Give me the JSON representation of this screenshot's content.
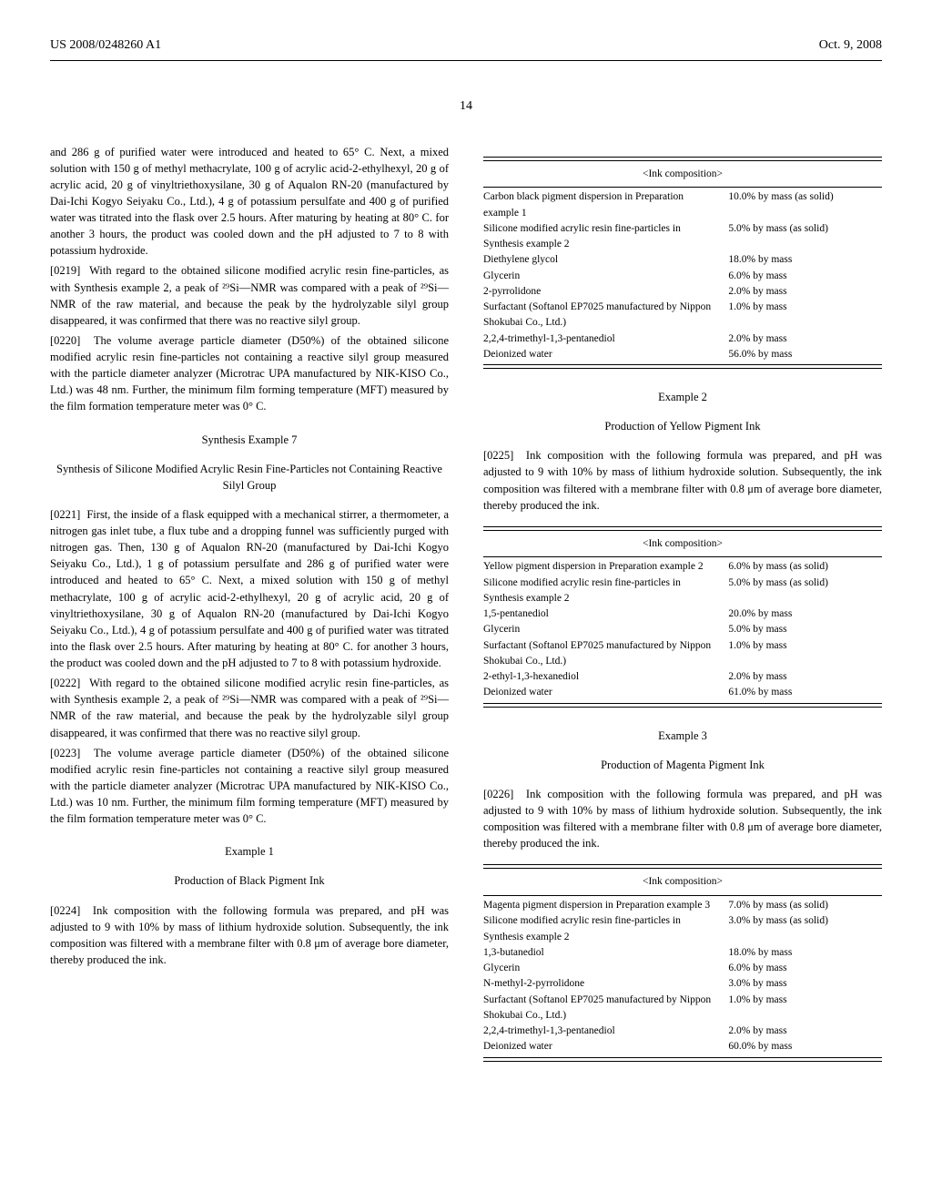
{
  "header": {
    "left": "US 2008/0248260 A1",
    "right": "Oct. 9, 2008",
    "pagenum": "14"
  },
  "col1": {
    "p1": "and 286 g of purified water were introduced and heated to 65° C. Next, a mixed solution with 150 g of methyl methacrylate, 100 g of acrylic acid-2-ethylhexyl, 20 g of acrylic acid, 20 g of vinyltriethoxysilane, 30 g of Aqualon RN-20 (manufactured by Dai-Ichi Kogyo Seiyaku Co., Ltd.), 4 g of potassium persulfate and 400 g of purified water was titrated into the flask over 2.5 hours. After maturing by heating at 80° C. for another 3 hours, the product was cooled down and the pH adjusted to 7 to 8 with potassium hydroxide.",
    "p2n": "[0219]",
    "p2": "With regard to the obtained silicone modified acrylic resin fine-particles, as with Synthesis example 2, a peak of ²⁹Si—NMR was compared with a peak of ²⁹Si—NMR of the raw material, and because the peak by the hydrolyzable silyl group disappeared, it was confirmed that there was no reactive silyl group.",
    "p3n": "[0220]",
    "p3": "The volume average particle diameter (D50%) of the obtained silicone modified acrylic resin fine-particles not containing a reactive silyl group measured with the particle diameter analyzer (Microtrac UPA manufactured by NIK-KISO Co., Ltd.) was 48 nm. Further, the minimum film forming temperature (MFT) measured by the film formation temperature meter was 0° C.",
    "synth_title": "Synthesis Example 7",
    "synth_sub": "Synthesis of Silicone Modified Acrylic Resin Fine-Particles not Containing Reactive Silyl Group",
    "p4n": "[0221]",
    "p4": "First, the inside of a flask equipped with a mechanical stirrer, a thermometer, a nitrogen gas inlet tube, a flux tube and a dropping funnel was sufficiently purged with nitrogen gas. Then, 130 g of Aqualon RN-20 (manufactured by Dai-Ichi Kogyo Seiyaku Co., Ltd.), 1 g of potassium persulfate and 286 g of purified water were introduced and heated to 65° C. Next, a mixed solution with 150 g of methyl methacrylate, 100 g of acrylic acid-2-ethylhexyl, 20 g of acrylic acid, 20 g of vinyltriethoxysilane, 30 g of Aqualon RN-20 (manufactured by Dai-Ichi Kogyo Seiyaku Co., Ltd.), 4 g of potassium persulfate and 400 g of purified water was titrated into the flask over 2.5 hours. After maturing by heating at 80° C. for another 3 hours, the product was cooled down and the pH adjusted to 7 to 8 with potassium hydroxide.",
    "p5n": "[0222]",
    "p5": "With regard to the obtained silicone modified acrylic resin fine-particles, as with Synthesis example 2, a peak of ²⁹Si—NMR was compared with a peak of ²⁹Si—NMR of the raw material, and because the peak by the hydrolyzable silyl group disappeared, it was confirmed that there was no reactive silyl group.",
    "p6n": "[0223]",
    "p6": "The volume average particle diameter (D50%) of the obtained silicone modified acrylic resin fine-particles not containing a reactive silyl group measured with the particle diameter analyzer (Microtrac UPA manufactured by NIK-KISO Co., Ltd.) was 10 nm. Further, the minimum film forming temperature (MFT) measured by the film formation temperature meter was 0° C.",
    "ex1_title": "Example 1",
    "ex1_sub": "Production of Black Pigment Ink",
    "p7n": "[0224]",
    "p7": "Ink composition with the following formula was prepared, and pH was adjusted to 9 with 10% by mass of lithium hydroxide solution. Subsequently, the ink composition was filtered with a membrane filter with 0.8 μm of average bore diameter, thereby produced the ink."
  },
  "col2": {
    "table1": {
      "caption": "<Ink composition>",
      "rows": [
        {
          "l": "Carbon black pigment dispersion in Preparation example 1",
          "v": "10.0% by mass (as solid)"
        },
        {
          "l": "Silicone modified acrylic resin fine-particles in Synthesis example 2",
          "v": "5.0% by mass (as solid)"
        },
        {
          "l": "Diethylene glycol",
          "v": "18.0% by mass"
        },
        {
          "l": "Glycerin",
          "v": "6.0% by mass"
        },
        {
          "l": "2-pyrrolidone",
          "v": "2.0% by mass"
        },
        {
          "l": "Surfactant (Softanol EP7025 manufactured by Nippon Shokubai Co., Ltd.)",
          "v": "1.0% by mass"
        },
        {
          "l": "2,2,4-trimethyl-1,3-pentanediol",
          "v": "2.0% by mass"
        },
        {
          "l": "Deionized water",
          "v": "56.0% by mass"
        }
      ]
    },
    "ex2_title": "Example 2",
    "ex2_sub": "Production of Yellow Pigment Ink",
    "p1n": "[0225]",
    "p1": "Ink composition with the following formula was prepared, and pH was adjusted to 9 with 10% by mass of lithium hydroxide solution. Subsequently, the ink composition was filtered with a membrane filter with 0.8 μm of average bore diameter, thereby produced the ink.",
    "table2": {
      "caption": "<Ink composition>",
      "rows": [
        {
          "l": "Yellow pigment dispersion in Preparation example 2",
          "v": "6.0% by mass (as solid)"
        },
        {
          "l": "Silicone modified acrylic resin fine-particles in Synthesis example 2",
          "v": "5.0% by mass (as solid)"
        },
        {
          "l": "1,5-pentanediol",
          "v": "20.0% by mass"
        },
        {
          "l": "Glycerin",
          "v": "5.0% by mass"
        },
        {
          "l": "Surfactant (Softanol EP7025 manufactured by Nippon Shokubai Co., Ltd.)",
          "v": "1.0% by mass"
        },
        {
          "l": "2-ethyl-1,3-hexanediol",
          "v": "2.0% by mass"
        },
        {
          "l": "Deionized water",
          "v": "61.0% by mass"
        }
      ]
    },
    "ex3_title": "Example 3",
    "ex3_sub": "Production of Magenta Pigment Ink",
    "p2n": "[0226]",
    "p2": "Ink composition with the following formula was prepared, and pH was adjusted to 9 with 10% by mass of lithium hydroxide solution. Subsequently, the ink composition was filtered with a membrane filter with 0.8 μm of average bore diameter, thereby produced the ink.",
    "table3": {
      "caption": "<Ink composition>",
      "rows": [
        {
          "l": "Magenta pigment dispersion in Preparation example 3",
          "v": "7.0% by mass (as solid)"
        },
        {
          "l": "Silicone modified acrylic resin fine-particles in Synthesis example 2",
          "v": "3.0% by mass (as solid)"
        },
        {
          "l": "1,3-butanediol",
          "v": "18.0% by mass"
        },
        {
          "l": "Glycerin",
          "v": "6.0% by mass"
        },
        {
          "l": "N-methyl-2-pyrrolidone",
          "v": "3.0% by mass"
        },
        {
          "l": "Surfactant (Softanol EP7025 manufactured by Nippon Shokubai Co., Ltd.)",
          "v": "1.0% by mass"
        },
        {
          "l": "2,2,4-trimethyl-1,3-pentanediol",
          "v": "2.0% by mass"
        },
        {
          "l": "Deionized water",
          "v": "60.0% by mass"
        }
      ]
    }
  }
}
